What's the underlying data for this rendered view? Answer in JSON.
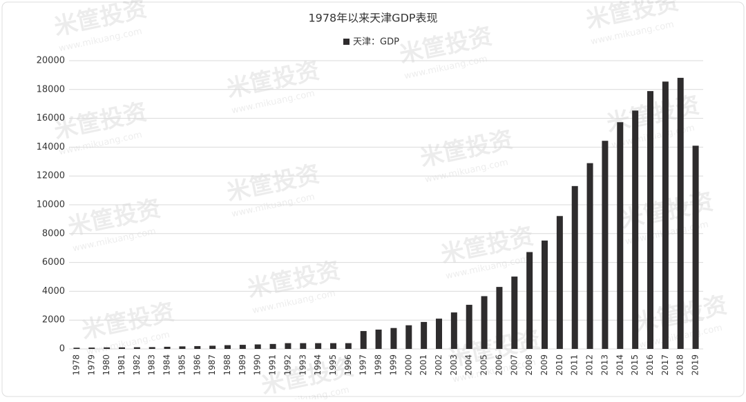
{
  "chart_data": {
    "type": "bar",
    "title": "1978年以来天津GDP表现",
    "watermark": {
      "brand": "米筐投资",
      "url": "www.mikuang.com"
    },
    "categories": [
      "1978",
      "1979",
      "1980",
      "1981",
      "1982",
      "1983",
      "1984",
      "1985",
      "1986",
      "1987",
      "1988",
      "1989",
      "1990",
      "1991",
      "1992",
      "1993",
      "1994",
      "1995",
      "1996",
      "1997",
      "1998",
      "1999",
      "2000",
      "2001",
      "2002",
      "2003",
      "2004",
      "2005",
      "2006",
      "2007",
      "2008",
      "2009",
      "2010",
      "2011",
      "2012",
      "2013",
      "2014",
      "2015",
      "2016",
      "2017",
      "2018",
      "2019"
    ],
    "series": [
      {
        "name": "天津：GDP",
        "color": "#2e2c2d",
        "values": [
          83,
          93,
          104,
          107,
          115,
          123,
          148,
          175,
          195,
          221,
          260,
          283,
          311,
          343,
          400,
          400,
          400,
          400,
          400,
          1240,
          1340,
          1450,
          1640,
          1870,
          2100,
          2530,
          3060,
          3660,
          4300,
          5020,
          6720,
          7520,
          9220,
          11300,
          12890,
          14440,
          15730,
          16540,
          17890,
          18550,
          18810,
          14100
        ]
      }
    ],
    "ylim": [
      0,
      20000
    ],
    "yticks": [
      0,
      2000,
      4000,
      6000,
      8000,
      10000,
      12000,
      14000,
      16000,
      18000,
      20000
    ],
    "grid": true,
    "legend": "top"
  }
}
